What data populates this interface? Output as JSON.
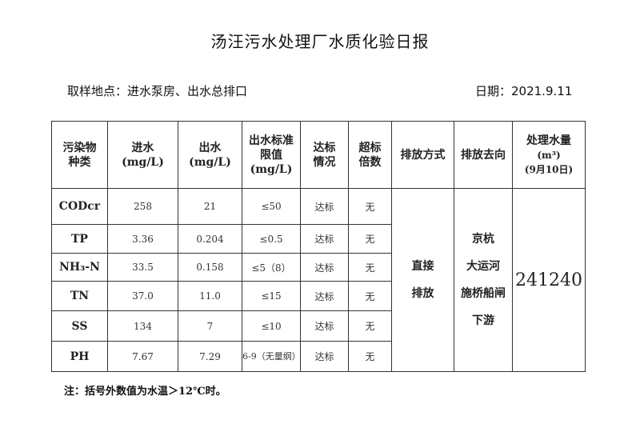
{
  "title": "汤汪污水处理厂水质化验日报",
  "sampling_location": "取样地点：进水泵房、出水总排口",
  "date": "日期：2021.9.11",
  "table": {
    "headers": [
      "污染物种类",
      "进水(mg/L)",
      "出水(mg/L)",
      "出水标准限值(mg/L)",
      "达标情况",
      "超标倍数",
      "排放方式",
      "排放去向",
      "处理水量(m³)(9月10日)"
    ],
    "header_lines": {
      "h0a": "污染物",
      "h0b": "种类",
      "h1a": "进水",
      "h1b": "(mg/L)",
      "h2a": "出水",
      "h2b": "(mg/L)",
      "h3a": "出水标准",
      "h3b": "限值",
      "h3c": "(mg/L)",
      "h4a": "达标",
      "h4b": "情况",
      "h5a": "超标",
      "h5b": "倍数",
      "h6": "排放方式",
      "h7": "排放去向",
      "h8a": "处理水量",
      "h8b": "(m³)",
      "h8c": "(9月10日)"
    },
    "rows": [
      {
        "pollutant": "CODcr",
        "influent": "258",
        "effluent": "21",
        "limit": "≤50",
        "status": "达标",
        "exceed": "无"
      },
      {
        "pollutant": "TP",
        "influent": "3.36",
        "effluent": "0.204",
        "limit": "≤0.5",
        "status": "达标",
        "exceed": "无"
      },
      {
        "pollutant": "NH₃-N",
        "influent": "33.5",
        "effluent": "0.158",
        "limit": "≤5（8）",
        "status": "达标",
        "exceed": "无"
      },
      {
        "pollutant": "TN",
        "influent": "37.0",
        "effluent": "11.0",
        "limit": "≤15",
        "status": "达标",
        "exceed": "无"
      },
      {
        "pollutant": "SS",
        "influent": "134",
        "effluent": "7",
        "limit": "≤10",
        "status": "达标",
        "exceed": "无"
      },
      {
        "pollutant": "PH",
        "influent": "7.67",
        "effluent": "7.29",
        "limit": "6-9（无量纲）",
        "status": "达标",
        "exceed": "无"
      }
    ],
    "discharge_method": {
      "a": "直接",
      "b": "排放"
    },
    "discharge_destination": {
      "a": "京杭",
      "b": "大运河",
      "c": "施桥船闸",
      "d": "下游"
    },
    "treated_volume": "241240"
  },
  "note": "注：括号外数值为水温＞12℃时。"
}
